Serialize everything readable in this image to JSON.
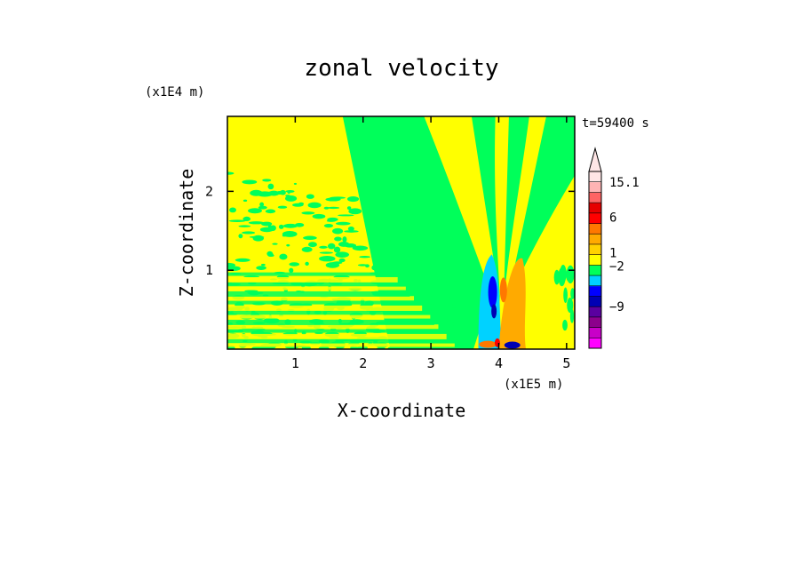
{
  "chart_data": {
    "type": "heatmap",
    "title": "zonal velocity",
    "xlabel": "X-coordinate",
    "ylabel": "Z-coordinate",
    "x_unit": "(x1E5 m)",
    "y_unit": "(x1E4 m)",
    "time_label": "t=59400 s",
    "xlim": [
      0,
      5.12
    ],
    "ylim": [
      0,
      2.95
    ],
    "x_ticks": [
      1,
      2,
      3,
      4,
      5
    ],
    "y_ticks": [
      1,
      2
    ],
    "colorbar": {
      "levels": [
        {
          "color": "#ff00ff"
        },
        {
          "color": "#c800c8"
        },
        {
          "color": "#8c008c"
        },
        {
          "color": "#5a00a0"
        },
        {
          "color": "#0000b4"
        },
        {
          "color": "#0000ff"
        },
        {
          "color": "#00d2ff"
        },
        {
          "color": "#00ff5a"
        },
        {
          "color": "#ffff00"
        },
        {
          "color": "#ffd200"
        },
        {
          "color": "#ffaa00"
        },
        {
          "color": "#ff7800"
        },
        {
          "color": "#ff0000"
        },
        {
          "color": "#e60000"
        },
        {
          "color": "#ff6464"
        },
        {
          "color": "#ffb4b4"
        },
        {
          "color": "#ffe6e6"
        }
      ],
      "labels": [
        {
          "text": "15.1",
          "at": 0.94
        },
        {
          "text": "6",
          "at": 0.74
        },
        {
          "text": "1",
          "at": 0.54
        },
        {
          "text": "−2",
          "at": 0.465
        },
        {
          "text": "−9",
          "at": 0.235
        }
      ],
      "extend": "max"
    },
    "field_colors": {
      "background": "#ffff00",
      "band": "#00ff5a",
      "cyan": "#00d2ff",
      "blue": "#0000ff",
      "navy": "#0000b4",
      "orange": "#ffaa00",
      "deep_orange": "#ff7800",
      "red": "#ff0000"
    }
  }
}
